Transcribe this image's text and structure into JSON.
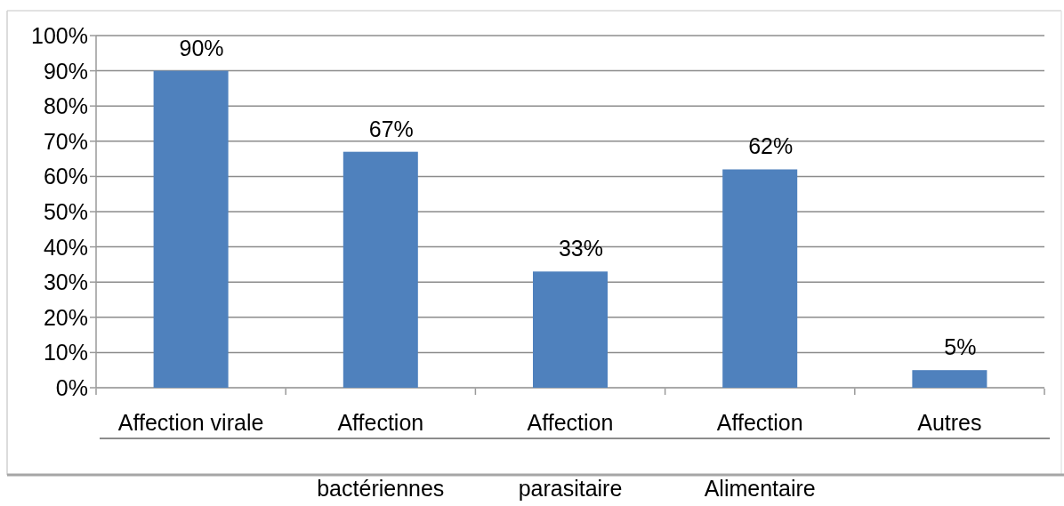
{
  "chart_data": {
    "type": "bar",
    "categories": [
      "Affection virale",
      "Affection\nbactériennes",
      "Affection\nparasitaire",
      "Affection\nAlimentaire",
      "Autres"
    ],
    "values": [
      90,
      67,
      33,
      62,
      5
    ],
    "color": "#4f81bd",
    "value_labels": [
      "90%",
      "67%",
      "33%",
      "62%",
      "5%"
    ],
    "ylim": [
      0,
      100
    ],
    "yticks": [
      {
        "value": 0,
        "label": "0%"
      },
      {
        "value": 10,
        "label": "10%"
      },
      {
        "value": 20,
        "label": "20%"
      },
      {
        "value": 30,
        "label": "30%"
      },
      {
        "value": 40,
        "label": "40%"
      },
      {
        "value": 50,
        "label": "50%"
      },
      {
        "value": 60,
        "label": "60%"
      },
      {
        "value": 70,
        "label": "70%"
      },
      {
        "value": 80,
        "label": "80%"
      },
      {
        "value": 90,
        "label": "90%"
      },
      {
        "value": 100,
        "label": "100%"
      }
    ],
    "grid": "y"
  }
}
